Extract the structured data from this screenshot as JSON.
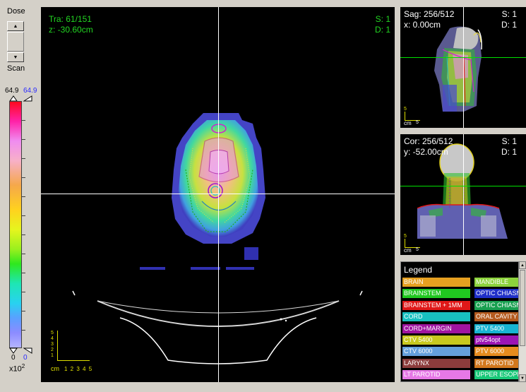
{
  "dose_panel": {
    "title": "Dose",
    "scan_label": "Scan",
    "max_left": "64.9",
    "max_right": "64.9",
    "min_left": "0",
    "min_right": "0",
    "units_base": "x10",
    "units_exp": "2",
    "spin_up_icon": "triangle-up",
    "spin_down_icon": "triangle-down"
  },
  "transverse": {
    "slice": "Tra: 61/151",
    "z": "z: -30.60cm",
    "s": "S: 1",
    "d": "D: 1",
    "scale_unit": "cm",
    "scale_ticks": "1 2 3 4 5",
    "scale_vticks": [
      "5",
      "4",
      "3",
      "2",
      "1"
    ]
  },
  "sagittal": {
    "slice": "Sag: 256/512",
    "x": "x: 0.00cm",
    "s": "S: 1",
    "d": "D: 1",
    "scale_v": "5",
    "scale_unit": "cm",
    "scale_h": "5"
  },
  "coronal": {
    "slice": "Cor: 256/512",
    "y": "y: -52.00cm",
    "s": "S: 1",
    "d": "D: 1",
    "scale_v": "5",
    "scale_unit": "cm",
    "scale_h": "5"
  },
  "legend": {
    "title": "Legend",
    "items": [
      {
        "label": "BRAIN",
        "color": "#e6a020"
      },
      {
        "label": "MANDIBLE",
        "color": "#8cd23c"
      },
      {
        "label": "BRAINSTEM",
        "color": "#20c820"
      },
      {
        "label": "OPTIC CHIASM",
        "color": "#2030c8"
      },
      {
        "label": "BRAINSTEM + 1MM",
        "color": "#e01818"
      },
      {
        "label": "OPTIC CHIASM",
        "color": "#18a050"
      },
      {
        "label": "CORD",
        "color": "#18c0c0"
      },
      {
        "label": "ORAL CAVITY",
        "color": "#b45a1e"
      },
      {
        "label": "CORD+MARGIN",
        "color": "#a014a0"
      },
      {
        "label": "PTV 5400",
        "color": "#18b4d2"
      },
      {
        "label": "CTV 5400",
        "color": "#c8c81e"
      },
      {
        "label": "ptv54opt",
        "color": "#9c14b4"
      },
      {
        "label": "CTV 6000",
        "color": "#64a0dc"
      },
      {
        "label": "PTV 6000",
        "color": "#e68c1e"
      },
      {
        "label": "LARYNX",
        "color": "#8c3c3c"
      },
      {
        "label": "RT PAROTID",
        "color": "#d2781e"
      },
      {
        "label": "LT PAROTID",
        "color": "#e678e6"
      },
      {
        "label": "UPPER ESOPH",
        "color": "#18c878"
      }
    ]
  }
}
